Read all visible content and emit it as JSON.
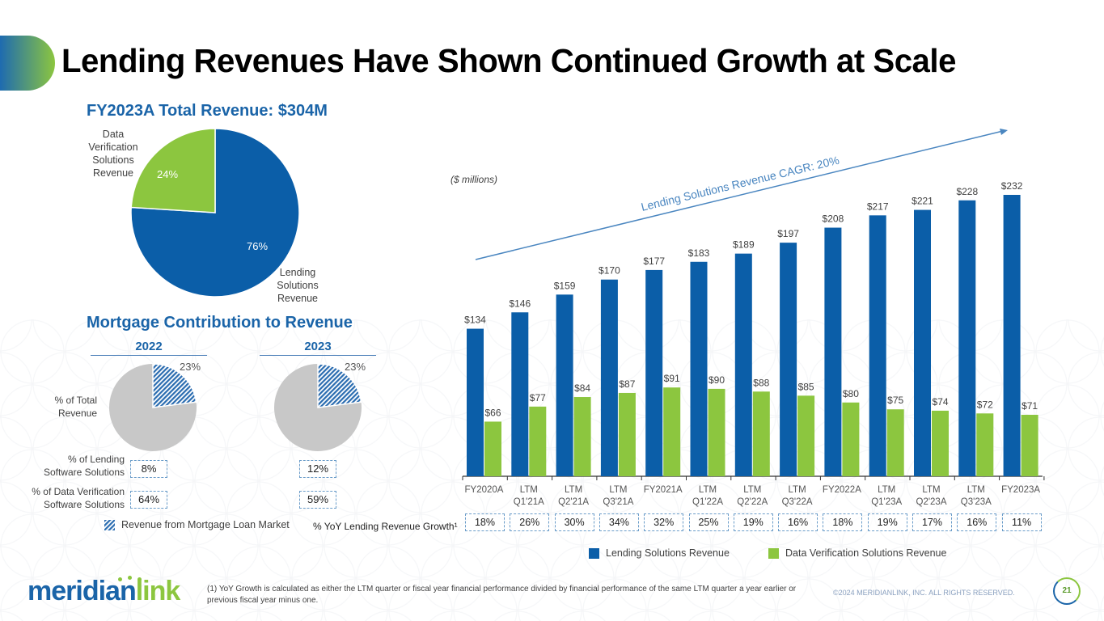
{
  "slide": {
    "title": "Lending Revenues Have Shown Continued Growth at Scale",
    "page_number": "21",
    "copyright": "©2024 MERIDIANLINK, INC. ALL RIGHTS RESERVED.",
    "footnote": "(1) YoY Growth is calculated as either the LTM quarter or fiscal year financial performance divided by financial performance of the same LTM quarter a year earlier or previous fiscal year minus one.",
    "logo": {
      "part1": "meridian",
      "part2": "link"
    }
  },
  "colors": {
    "lending": "#0b5ea8",
    "data_verification": "#8cc63f",
    "mortgage_other": "#c8c8c8",
    "title_accent": "#1a64a8"
  },
  "total_revenue": {
    "title": "FY2023A Total Revenue: $304M",
    "labels": {
      "data_verification": "Data\nVerification\nSolutions\nRevenue",
      "lending": "Lending\nSolutions\nRevenue"
    }
  },
  "mortgage": {
    "title": "Mortgage Contribution to Revenue",
    "row_labels": {
      "total": "% of Total\nRevenue",
      "lending": "% of Lending\nSoftware Solutions",
      "data_verification": "% of Data Verification\nSoftware Solutions"
    },
    "years": [
      {
        "year": "2022",
        "pct_total": "23%",
        "pct_lending": "8%",
        "pct_dv": "64%"
      },
      {
        "year": "2023",
        "pct_total": "23%",
        "pct_lending": "12%",
        "pct_dv": "59%"
      }
    ],
    "legend": "Revenue from Mortgage Loan Market"
  },
  "bar_chart": {
    "units_label": "($ millions)",
    "cagr_label": "Lending Solutions Revenue CAGR: 20%",
    "growth_row_label": "% YoY Lending Revenue Growth¹",
    "growth": [
      "18%",
      "26%",
      "30%",
      "34%",
      "32%",
      "25%",
      "19%",
      "16%",
      "18%",
      "19%",
      "17%",
      "16%",
      "11%"
    ],
    "legend": {
      "lending": "Lending Solutions Revenue",
      "data_verification": "Data Verification Solutions Revenue"
    }
  },
  "chart_data": [
    {
      "type": "pie",
      "title": "FY2023A Total Revenue: $304M",
      "slices": [
        {
          "label": "Lending Solutions Revenue",
          "value": 76,
          "display": "76%"
        },
        {
          "label": "Data Verification Solutions Revenue",
          "value": 24,
          "display": "24%"
        }
      ]
    },
    {
      "type": "pie",
      "title": "2022 % of Total Revenue",
      "slices": [
        {
          "label": "Revenue from Mortgage Loan Market",
          "value": 23,
          "display": "23%"
        },
        {
          "label": "Other",
          "value": 77,
          "display": ""
        }
      ]
    },
    {
      "type": "pie",
      "title": "2023 % of Total Revenue",
      "slices": [
        {
          "label": "Revenue from Mortgage Loan Market",
          "value": 23,
          "display": "23%"
        },
        {
          "label": "Other",
          "value": 77,
          "display": ""
        }
      ]
    },
    {
      "type": "bar",
      "title": "",
      "ylabel": "($ millions)",
      "categories": [
        [
          "FY2020A"
        ],
        [
          "LTM",
          "Q1'21A"
        ],
        [
          "LTM",
          "Q2'21A"
        ],
        [
          "LTM",
          "Q3'21A"
        ],
        [
          "FY2021A"
        ],
        [
          "LTM",
          "Q1'22A"
        ],
        [
          "LTM",
          "Q2'22A"
        ],
        [
          "LTM",
          "Q3'22A"
        ],
        [
          "FY2022A"
        ],
        [
          "LTM",
          "Q1'23A"
        ],
        [
          "LTM",
          "Q2'23A"
        ],
        [
          "LTM",
          "Q3'23A"
        ],
        [
          "FY2023A"
        ]
      ],
      "series": [
        {
          "name": "Lending Solutions Revenue",
          "values": [
            134,
            146,
            159,
            170,
            177,
            183,
            189,
            197,
            208,
            217,
            221,
            228,
            232
          ]
        },
        {
          "name": "Data Verification Solutions Revenue",
          "values": [
            66,
            77,
            84,
            87,
            91,
            90,
            88,
            85,
            80,
            75,
            74,
            72,
            71
          ]
        }
      ],
      "value_prefix": "$",
      "ylim": [
        26,
        245
      ],
      "grid": false,
      "legend": "bottom"
    }
  ]
}
